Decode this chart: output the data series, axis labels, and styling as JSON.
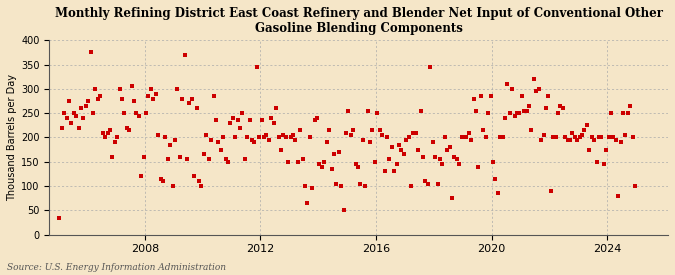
{
  "title": "Monthly Refining District East Coast Refinery and Blender Net Input of Conventional Other\nGasoline Blending Components",
  "ylabel": "Thousand Barrels per Day",
  "source": "Source: U.S. Energy Information Administration",
  "bg_color": "#f5e6c8",
  "marker_color": "#cc0000",
  "ylim": [
    0,
    400
  ],
  "yticks": [
    0,
    50,
    100,
    150,
    200,
    250,
    300,
    350,
    400
  ],
  "x_start_year": 2005.0,
  "x_end_year": 2026.0,
  "xtick_years": [
    2008,
    2012,
    2016,
    2020,
    2024
  ],
  "values": [
    35,
    220,
    250,
    240,
    275,
    230,
    250,
    245,
    220,
    260,
    240,
    265,
    275,
    375,
    250,
    300,
    280,
    285,
    210,
    200,
    210,
    215,
    160,
    190,
    200,
    300,
    280,
    250,
    220,
    215,
    305,
    275,
    250,
    245,
    120,
    160,
    250,
    285,
    300,
    280,
    290,
    205,
    115,
    110,
    200,
    155,
    185,
    100,
    195,
    300,
    160,
    280,
    370,
    155,
    270,
    280,
    120,
    260,
    110,
    100,
    165,
    205,
    155,
    195,
    285,
    235,
    190,
    175,
    200,
    155,
    150,
    230,
    240,
    200,
    235,
    220,
    250,
    155,
    200,
    235,
    195,
    190,
    345,
    200,
    235,
    200,
    205,
    195,
    240,
    230,
    260,
    200,
    175,
    205,
    200,
    150,
    200,
    205,
    195,
    150,
    215,
    155,
    100,
    65,
    200,
    95,
    235,
    240,
    145,
    140,
    150,
    190,
    215,
    135,
    165,
    105,
    170,
    100,
    50,
    210,
    255,
    205,
    215,
    145,
    140,
    105,
    195,
    100,
    255,
    190,
    215,
    150,
    250,
    215,
    205,
    130,
    200,
    155,
    180,
    130,
    145,
    185,
    175,
    165,
    195,
    200,
    100,
    210,
    210,
    175,
    255,
    160,
    110,
    105,
    345,
    190,
    160,
    105,
    155,
    145,
    200,
    175,
    180,
    75,
    160,
    155,
    145,
    200,
    200,
    200,
    210,
    195,
    280,
    255,
    140,
    285,
    215,
    200,
    250,
    285,
    150,
    115,
    85,
    200,
    200,
    240,
    310,
    250,
    300,
    245,
    250,
    250,
    285,
    255,
    255,
    265,
    215,
    320,
    295,
    300,
    195,
    205,
    260,
    285,
    90,
    200,
    200,
    250,
    265,
    260,
    200,
    195,
    195,
    210,
    200,
    195,
    200,
    205,
    215,
    225,
    175,
    200,
    195,
    150,
    200,
    200,
    145,
    175,
    200,
    250,
    200,
    195,
    80,
    190,
    250,
    205,
    250,
    265,
    200,
    100
  ]
}
